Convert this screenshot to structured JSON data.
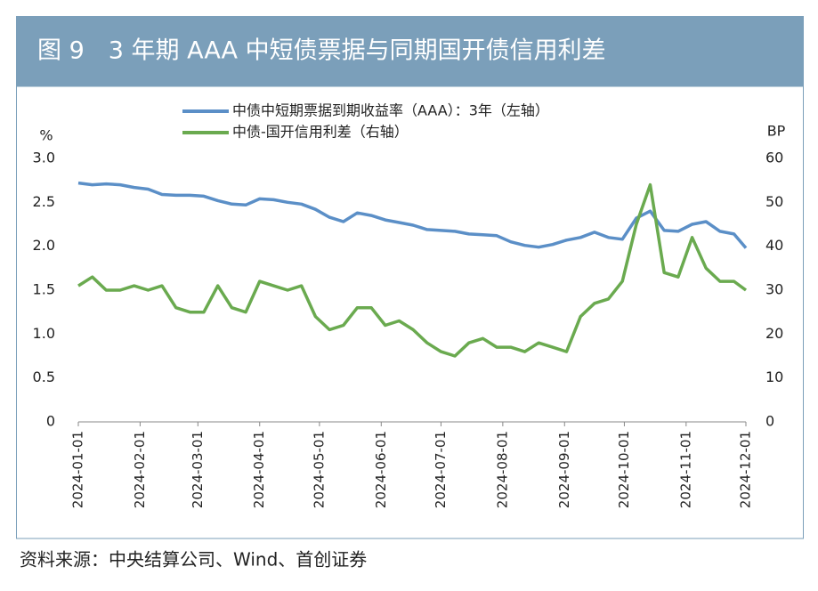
{
  "chart_data": {
    "type": "line",
    "title": "图 9　3 年期 AAA 中短债票据与同期国开债信用利差",
    "source": "资料来源：中央结算公司、Wind、首创证券",
    "ylabel": "%",
    "y2label": "BP",
    "legend": "top",
    "x": [
      "2024-01-01",
      "2024-01-08",
      "2024-01-15",
      "2024-01-22",
      "2024-01-29",
      "2024-02-05",
      "2024-02-12",
      "2024-02-19",
      "2024-02-26",
      "2024-03-04",
      "2024-03-11",
      "2024-03-18",
      "2024-03-25",
      "2024-04-01",
      "2024-04-08",
      "2024-04-15",
      "2024-04-22",
      "2024-04-29",
      "2024-05-06",
      "2024-05-13",
      "2024-05-20",
      "2024-05-27",
      "2024-06-03",
      "2024-06-10",
      "2024-06-17",
      "2024-06-24",
      "2024-07-01",
      "2024-07-08",
      "2024-07-15",
      "2024-07-22",
      "2024-07-29",
      "2024-08-05",
      "2024-08-12",
      "2024-08-19",
      "2024-08-26",
      "2024-09-02",
      "2024-09-09",
      "2024-09-16",
      "2024-09-23",
      "2024-09-30",
      "2024-10-07",
      "2024-10-14",
      "2024-10-21",
      "2024-10-28",
      "2024-11-04",
      "2024-11-11",
      "2024-11-18",
      "2024-11-25",
      "2024-12-01"
    ],
    "series": [
      {
        "name": "中债中短期票据到期收益率（AAA）：3年（左轴）",
        "color": "#5b8fc7",
        "axis": "y",
        "values": [
          2.72,
          2.7,
          2.71,
          2.7,
          2.67,
          2.65,
          2.59,
          2.58,
          2.58,
          2.57,
          2.52,
          2.48,
          2.47,
          2.54,
          2.53,
          2.5,
          2.48,
          2.42,
          2.33,
          2.28,
          2.38,
          2.35,
          2.3,
          2.27,
          2.24,
          2.19,
          2.18,
          2.17,
          2.14,
          2.13,
          2.12,
          2.05,
          2.01,
          1.99,
          2.02,
          2.07,
          2.1,
          2.16,
          2.1,
          2.08,
          2.32,
          2.4,
          2.18,
          2.17,
          2.25,
          2.28,
          2.17,
          2.14,
          1.98
        ]
      },
      {
        "name": "中债-国开信用利差（右轴）",
        "color": "#6aaa4f",
        "axis": "y2",
        "values": [
          31,
          33,
          30,
          30,
          31,
          30,
          31,
          26,
          25,
          25,
          31,
          26,
          25,
          32,
          31,
          30,
          31,
          24,
          21,
          22,
          26,
          26,
          22,
          23,
          21,
          18,
          16,
          15,
          18,
          19,
          17,
          17,
          16,
          18,
          17,
          16,
          24,
          27,
          28,
          32,
          45,
          54,
          34,
          33,
          42,
          35,
          32,
          32,
          30
        ]
      }
    ],
    "xlim": [
      "2024-01-01",
      "2024-12-01"
    ],
    "xticks": [
      "2024-01-01",
      "2024-02-01",
      "2024-03-01",
      "2024-04-01",
      "2024-05-01",
      "2024-06-01",
      "2024-07-01",
      "2024-08-01",
      "2024-09-01",
      "2024-10-01",
      "2024-11-01",
      "2024-12-01"
    ],
    "ylim": [
      0,
      3
    ],
    "yticks": [
      0,
      0.5,
      {
        "value": 1,
        "label": "1.0"
      },
      1.5,
      {
        "value": 2,
        "label": "2.0"
      },
      2.5,
      {
        "value": 3,
        "label": "3.0"
      }
    ],
    "y2lim": [
      0,
      60
    ],
    "y2ticks": [
      0,
      10,
      20,
      30,
      40,
      50,
      60
    ]
  }
}
